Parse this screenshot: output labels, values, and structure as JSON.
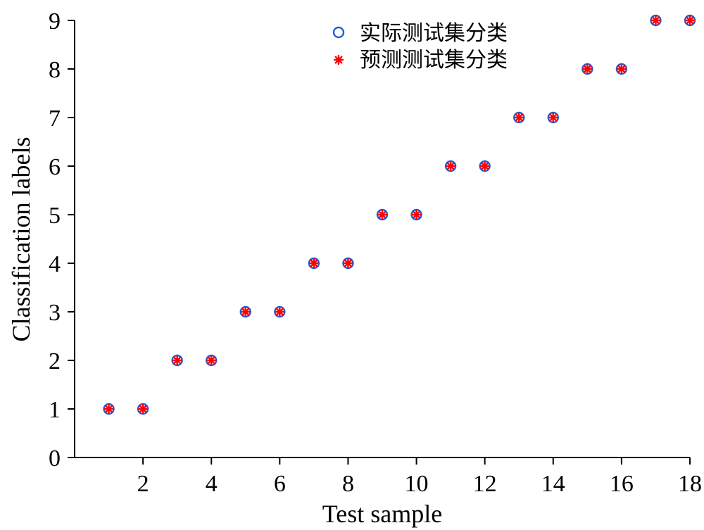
{
  "chart_data": {
    "type": "scatter",
    "title": "",
    "xlabel": "Test sample",
    "ylabel": "Classification labels",
    "xlim": [
      0,
      18
    ],
    "ylim": [
      0,
      9
    ],
    "xticks": [
      2,
      4,
      6,
      8,
      10,
      12,
      14,
      16,
      18
    ],
    "yticks": [
      0,
      1,
      2,
      3,
      4,
      5,
      6,
      7,
      8,
      9
    ],
    "grid": false,
    "legend_position": "top-center",
    "series": [
      {
        "name": "实际测试集分类",
        "marker": "circle",
        "color": "#1f5fd8",
        "x": [
          1,
          2,
          3,
          4,
          5,
          6,
          7,
          8,
          9,
          10,
          11,
          12,
          13,
          14,
          15,
          16,
          17,
          18
        ],
        "y": [
          1,
          1,
          2,
          2,
          3,
          3,
          4,
          4,
          5,
          5,
          6,
          6,
          7,
          7,
          8,
          8,
          9,
          9
        ]
      },
      {
        "name": "预测测试集分类",
        "marker": "asterisk",
        "color": "#ff0000",
        "x": [
          1,
          2,
          3,
          4,
          5,
          6,
          7,
          8,
          9,
          10,
          11,
          12,
          13,
          14,
          15,
          16,
          17,
          18
        ],
        "y": [
          1,
          1,
          2,
          2,
          3,
          3,
          4,
          4,
          5,
          5,
          6,
          6,
          7,
          7,
          8,
          8,
          9,
          9
        ]
      }
    ]
  }
}
